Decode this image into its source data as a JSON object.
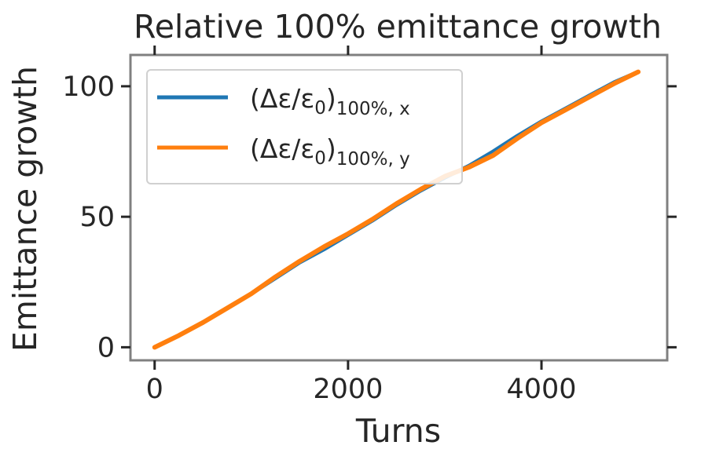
{
  "chart_data": {
    "type": "line",
    "title": "Relative 100% emittance growth",
    "xlabel": "Turns",
    "ylabel": "Emittance growth",
    "xlim": [
      -250,
      5300
    ],
    "ylim": [
      -5,
      112
    ],
    "xticks": [
      0,
      2000,
      4000
    ],
    "xtick_labels": [
      "0",
      "2000",
      "4000"
    ],
    "yticks": [
      0,
      50,
      100
    ],
    "ytick_labels": [
      "0",
      "50",
      "100"
    ],
    "grid": false,
    "legend_position": "upper left",
    "series": [
      {
        "name": "(Δε/ε0)100%, x",
        "legend_main": "(Δε/ε",
        "legend_sub0": "0",
        "legend_close": ")",
        "legend_sub": "100%, x",
        "color": "#1f77b4",
        "x": [
          0,
          250,
          500,
          750,
          1000,
          1250,
          1500,
          1750,
          2000,
          2250,
          2500,
          2750,
          3000,
          3250,
          3500,
          3750,
          4000,
          4250,
          4500,
          4750,
          5000
        ],
        "y": [
          0,
          4.5,
          9.5,
          15,
          20.5,
          26.5,
          32.5,
          37.5,
          43,
          48.5,
          54.5,
          60,
          65,
          69.5,
          75,
          81,
          86.5,
          91.5,
          96.5,
          101.5,
          105.5
        ]
      },
      {
        "name": "(Δε/ε0)100%, y",
        "legend_main": "(Δε/ε",
        "legend_sub0": "0",
        "legend_close": ")",
        "legend_sub": "100%, y",
        "color": "#ff7f0e",
        "x": [
          0,
          250,
          500,
          750,
          1000,
          1250,
          1500,
          1750,
          2000,
          2250,
          2500,
          2750,
          3000,
          3250,
          3500,
          3750,
          4000,
          4250,
          4500,
          4750,
          5000
        ],
        "y": [
          0,
          4.5,
          9.5,
          15,
          20.5,
          27,
          33,
          38.5,
          43.5,
          49,
          55,
          60.5,
          65.5,
          69,
          73.5,
          80,
          86,
          91,
          96,
          101,
          105.5
        ]
      }
    ]
  }
}
